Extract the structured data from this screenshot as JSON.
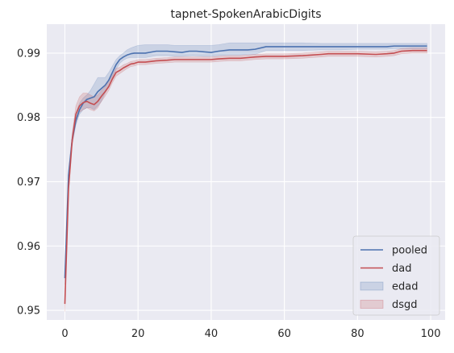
{
  "chart_data": {
    "type": "line",
    "title": "tapnet-SpokenArabicDigits",
    "xlabel": "",
    "ylabel": "",
    "xlim": [
      -4.95,
      103.95
    ],
    "ylim": [
      0.9485,
      0.9945
    ],
    "xticks": [
      0,
      20,
      40,
      60,
      80,
      100
    ],
    "yticks": [
      0.95,
      0.96,
      0.97,
      0.98,
      0.99
    ],
    "xtick_labels": [
      "0",
      "20",
      "40",
      "60",
      "80",
      "100"
    ],
    "ytick_labels": [
      "0.95",
      "0.96",
      "0.97",
      "0.98",
      "0.99"
    ],
    "grid": true,
    "legend_position": "lower-right",
    "series": [
      {
        "name": "pooled",
        "color": "#4c72b0",
        "style": "line",
        "x": [
          0,
          1,
          2,
          3,
          4,
          5,
          6,
          7,
          8,
          9,
          10,
          11,
          12,
          13,
          14,
          15,
          16,
          17,
          18,
          19,
          20,
          22,
          25,
          28,
          30,
          32,
          34,
          36,
          38,
          40,
          42,
          45,
          48,
          50,
          52,
          55,
          60,
          65,
          70,
          72,
          75,
          80,
          85,
          88,
          90,
          95,
          99
        ],
        "y": [
          0.955,
          0.971,
          0.9765,
          0.9795,
          0.9812,
          0.9822,
          0.9828,
          0.983,
          0.9832,
          0.984,
          0.9845,
          0.985,
          0.9858,
          0.987,
          0.9882,
          0.989,
          0.9894,
          0.9897,
          0.9899,
          0.99,
          0.99,
          0.99,
          0.9903,
          0.9903,
          0.9902,
          0.9901,
          0.9903,
          0.9903,
          0.9902,
          0.9901,
          0.9903,
          0.9905,
          0.9905,
          0.9905,
          0.9906,
          0.991,
          0.991,
          0.991,
          0.991,
          0.991,
          0.991,
          0.991,
          0.991,
          0.991,
          0.9911,
          0.9911,
          0.9911
        ]
      },
      {
        "name": "dad",
        "color": "#c44e52",
        "style": "line",
        "x": [
          0,
          1,
          2,
          3,
          4,
          5,
          6,
          7,
          8,
          9,
          10,
          11,
          12,
          13,
          14,
          15,
          16,
          17,
          18,
          19,
          20,
          22,
          25,
          28,
          30,
          32,
          35,
          38,
          40,
          42,
          45,
          48,
          50,
          52,
          55,
          60,
          65,
          70,
          72,
          75,
          80,
          85,
          88,
          90,
          92,
          95,
          99
        ],
        "y": [
          0.951,
          0.969,
          0.9765,
          0.9805,
          0.9818,
          0.9823,
          0.9825,
          0.9822,
          0.982,
          0.9825,
          0.9833,
          0.984,
          0.9848,
          0.986,
          0.987,
          0.9873,
          0.9877,
          0.988,
          0.9883,
          0.9884,
          0.9886,
          0.9886,
          0.9888,
          0.9889,
          0.989,
          0.989,
          0.989,
          0.989,
          0.989,
          0.9891,
          0.9892,
          0.9892,
          0.9893,
          0.9894,
          0.9895,
          0.9895,
          0.9896,
          0.9898,
          0.9899,
          0.9899,
          0.9899,
          0.9898,
          0.9899,
          0.99,
          0.9903,
          0.9904,
          0.9904
        ]
      }
    ],
    "bands": [
      {
        "name": "edad",
        "color": "#4c72b0",
        "x": [
          0,
          1,
          2,
          3,
          4,
          5,
          6,
          7,
          8,
          9,
          10,
          11,
          12,
          13,
          14,
          15,
          16,
          17,
          18,
          19,
          20,
          22,
          25,
          28,
          30,
          32,
          35,
          38,
          40,
          42,
          45,
          48,
          50,
          52,
          55,
          60,
          65,
          70,
          72,
          75,
          80,
          85,
          88,
          90,
          95,
          99
        ],
        "lower": [
          0.954,
          0.9702,
          0.976,
          0.9788,
          0.9805,
          0.9812,
          0.9815,
          0.9815,
          0.9812,
          0.9818,
          0.9825,
          0.9838,
          0.9848,
          0.9862,
          0.9875,
          0.9884,
          0.9889,
          0.9892,
          0.9893,
          0.9893,
          0.9893,
          0.9893,
          0.9896,
          0.9896,
          0.9895,
          0.9895,
          0.9896,
          0.9895,
          0.9895,
          0.9896,
          0.9897,
          0.9897,
          0.9898,
          0.9898,
          0.9904,
          0.9904,
          0.9904,
          0.9905,
          0.9905,
          0.9905,
          0.9906,
          0.9906,
          0.9906,
          0.9907,
          0.9907,
          0.9907
        ],
        "upper": [
          0.956,
          0.9718,
          0.9774,
          0.9806,
          0.9822,
          0.983,
          0.9835,
          0.9842,
          0.9852,
          0.9862,
          0.9862,
          0.9862,
          0.987,
          0.988,
          0.989,
          0.9896,
          0.99,
          0.9905,
          0.9908,
          0.991,
          0.9912,
          0.9913,
          0.9913,
          0.9913,
          0.9912,
          0.9912,
          0.9912,
          0.9912,
          0.9912,
          0.9913,
          0.9916,
          0.9916,
          0.9916,
          0.9916,
          0.9916,
          0.9916,
          0.9916,
          0.9915,
          0.9915,
          0.9915,
          0.9915,
          0.9915,
          0.9915,
          0.9915,
          0.9915,
          0.9915
        ]
      },
      {
        "name": "dsgd",
        "color": "#c44e52",
        "x": [
          0,
          1,
          2,
          3,
          4,
          5,
          6,
          7,
          8,
          9,
          10,
          11,
          12,
          13,
          14,
          15,
          16,
          17,
          18,
          19,
          20,
          22,
          25,
          28,
          30,
          32,
          35,
          38,
          40,
          42,
          45,
          48,
          50,
          52,
          55,
          60,
          65,
          70,
          72,
          75,
          80,
          85,
          88,
          90,
          92,
          95,
          99
        ],
        "lower": [
          0.9498,
          0.9682,
          0.9755,
          0.9792,
          0.9808,
          0.9812,
          0.9815,
          0.9812,
          0.981,
          0.9815,
          0.9825,
          0.9833,
          0.9842,
          0.9854,
          0.9864,
          0.9868,
          0.9872,
          0.9876,
          0.9879,
          0.988,
          0.9882,
          0.9882,
          0.9884,
          0.9885,
          0.9886,
          0.9886,
          0.9886,
          0.9886,
          0.9886,
          0.9887,
          0.9888,
          0.9888,
          0.9889,
          0.989,
          0.9891,
          0.9891,
          0.9892,
          0.9894,
          0.9895,
          0.9895,
          0.9895,
          0.9894,
          0.9895,
          0.9896,
          0.9899,
          0.99,
          0.99
        ],
        "upper": [
          0.9522,
          0.9698,
          0.9775,
          0.9818,
          0.9832,
          0.9838,
          0.9838,
          0.9835,
          0.9832,
          0.9835,
          0.9842,
          0.9848,
          0.9856,
          0.9866,
          0.9876,
          0.9878,
          0.9882,
          0.9884,
          0.9887,
          0.9888,
          0.989,
          0.989,
          0.9892,
          0.9893,
          0.9894,
          0.9894,
          0.9894,
          0.9894,
          0.9894,
          0.9895,
          0.9896,
          0.9896,
          0.9897,
          0.9898,
          0.9899,
          0.9899,
          0.99,
          0.9902,
          0.9903,
          0.9903,
          0.9903,
          0.9902,
          0.9903,
          0.9904,
          0.9907,
          0.9908,
          0.9908
        ]
      }
    ],
    "legend": [
      {
        "label": "pooled",
        "kind": "line",
        "color": "#4c72b0"
      },
      {
        "label": "dad",
        "kind": "line",
        "color": "#c44e52"
      },
      {
        "label": "edad",
        "kind": "band",
        "color": "#4c72b0"
      },
      {
        "label": "dsgd",
        "kind": "band",
        "color": "#c44e52"
      }
    ]
  }
}
